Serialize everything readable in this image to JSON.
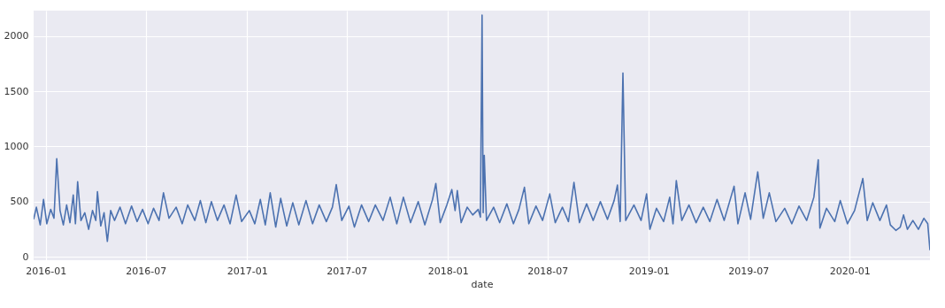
{
  "chart_data": {
    "type": "line",
    "xlabel": "date",
    "grid": true,
    "marker": "none",
    "line_style": "solid",
    "xlim": [
      "2015-12-10",
      "2020-05-26"
    ],
    "ylim": [
      -30,
      2230
    ],
    "xticks": [
      "2016-01",
      "2016-07",
      "2017-01",
      "2017-07",
      "2018-01",
      "2018-07",
      "2019-01",
      "2019-07",
      "2020-01"
    ],
    "yticks": [
      0,
      500,
      1000,
      1500,
      2000
    ],
    "x": [
      "2015-12-10",
      "2015-12-15",
      "2015-12-22",
      "2015-12-28",
      "2016-01-03",
      "2016-01-10",
      "2016-01-16",
      "2016-01-21",
      "2016-01-27",
      "2016-02-02",
      "2016-02-08",
      "2016-02-14",
      "2016-02-20",
      "2016-02-24",
      "2016-02-28",
      "2016-03-05",
      "2016-03-12",
      "2016-03-19",
      "2016-03-26",
      "2016-04-01",
      "2016-04-04",
      "2016-04-10",
      "2016-04-16",
      "2016-04-22",
      "2016-04-28",
      "2016-05-05",
      "2016-05-15",
      "2016-05-25",
      "2016-06-05",
      "2016-06-15",
      "2016-06-25",
      "2016-07-05",
      "2016-07-15",
      "2016-07-25",
      "2016-08-02",
      "2016-08-12",
      "2016-08-25",
      "2016-09-05",
      "2016-09-15",
      "2016-09-28",
      "2016-10-08",
      "2016-10-18",
      "2016-10-28",
      "2016-11-08",
      "2016-11-20",
      "2016-12-01",
      "2016-12-12",
      "2016-12-22",
      "2017-01-05",
      "2017-01-15",
      "2017-01-25",
      "2017-02-03",
      "2017-02-12",
      "2017-02-22",
      "2017-03-03",
      "2017-03-14",
      "2017-03-25",
      "2017-04-05",
      "2017-04-18",
      "2017-04-30",
      "2017-05-12",
      "2017-05-25",
      "2017-06-05",
      "2017-06-12",
      "2017-06-22",
      "2017-07-05",
      "2017-07-15",
      "2017-07-28",
      "2017-08-10",
      "2017-08-22",
      "2017-09-05",
      "2017-09-18",
      "2017-09-30",
      "2017-10-12",
      "2017-10-25",
      "2017-11-08",
      "2017-11-20",
      "2017-12-04",
      "2017-12-10",
      "2017-12-18",
      "2017-12-30",
      "2018-01-08",
      "2018-01-14",
      "2018-01-18",
      "2018-01-25",
      "2018-02-05",
      "2018-02-15",
      "2018-02-25",
      "2018-03-01",
      "2018-03-04",
      "2018-03-06",
      "2018-03-08",
      "2018-03-12",
      "2018-03-25",
      "2018-04-05",
      "2018-04-18",
      "2018-04-30",
      "2018-05-10",
      "2018-05-20",
      "2018-05-28",
      "2018-06-10",
      "2018-06-22",
      "2018-07-05",
      "2018-07-15",
      "2018-07-28",
      "2018-08-08",
      "2018-08-18",
      "2018-08-28",
      "2018-09-10",
      "2018-09-22",
      "2018-10-05",
      "2018-10-18",
      "2018-10-30",
      "2018-11-05",
      "2018-11-10",
      "2018-11-15",
      "2018-11-20",
      "2018-12-05",
      "2018-12-18",
      "2018-12-28",
      "2019-01-03",
      "2019-01-15",
      "2019-01-28",
      "2019-02-08",
      "2019-02-14",
      "2019-02-20",
      "2019-03-02",
      "2019-03-15",
      "2019-03-28",
      "2019-04-10",
      "2019-04-22",
      "2019-05-05",
      "2019-05-18",
      "2019-06-05",
      "2019-06-12",
      "2019-06-25",
      "2019-07-05",
      "2019-07-18",
      "2019-07-28",
      "2019-08-08",
      "2019-08-20",
      "2019-09-05",
      "2019-09-18",
      "2019-10-01",
      "2019-10-15",
      "2019-10-28",
      "2019-11-05",
      "2019-11-08",
      "2019-11-20",
      "2019-12-05",
      "2019-12-15",
      "2019-12-28",
      "2020-01-10",
      "2020-01-25",
      "2020-02-02",
      "2020-02-12",
      "2020-02-25",
      "2020-03-08",
      "2020-03-15",
      "2020-03-25",
      "2020-04-02",
      "2020-04-08",
      "2020-04-15",
      "2020-04-25",
      "2020-05-05",
      "2020-05-15",
      "2020-05-22",
      "2020-05-26"
    ],
    "series": [
      {
        "color": "#4c72b0",
        "values": [
          340,
          450,
          290,
          520,
          300,
          430,
          350,
          890,
          420,
          290,
          470,
          310,
          560,
          300,
          680,
          330,
          400,
          250,
          420,
          330,
          590,
          280,
          400,
          140,
          420,
          330,
          450,
          300,
          460,
          320,
          430,
          300,
          440,
          330,
          580,
          350,
          450,
          300,
          470,
          330,
          510,
          310,
          500,
          330,
          470,
          300,
          560,
          320,
          420,
          300,
          520,
          290,
          580,
          270,
          530,
          280,
          490,
          290,
          510,
          300,
          470,
          320,
          450,
          655,
          330,
          460,
          270,
          470,
          320,
          470,
          330,
          540,
          300,
          540,
          310,
          500,
          290,
          520,
          665,
          310,
          470,
          610,
          420,
          600,
          310,
          450,
          380,
          430,
          360,
          2190,
          400,
          920,
          330,
          450,
          310,
          480,
          300,
          430,
          630,
          300,
          460,
          330,
          570,
          310,
          450,
          320,
          675,
          310,
          480,
          330,
          500,
          340,
          510,
          650,
          320,
          1665,
          330,
          470,
          330,
          570,
          250,
          440,
          320,
          540,
          300,
          690,
          330,
          470,
          310,
          450,
          320,
          520,
          330,
          640,
          300,
          580,
          340,
          770,
          350,
          580,
          320,
          440,
          300,
          460,
          330,
          540,
          880,
          260,
          440,
          320,
          510,
          300,
          420,
          710,
          330,
          490,
          330,
          470,
          290,
          240,
          270,
          380,
          250,
          330,
          250,
          350,
          300,
          60
        ]
      }
    ]
  }
}
